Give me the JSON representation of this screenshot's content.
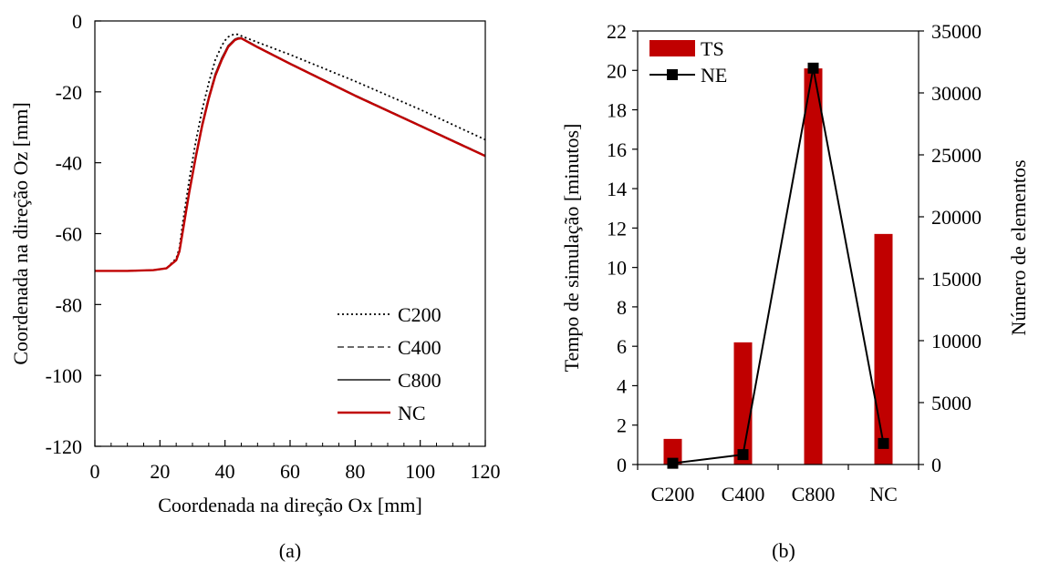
{
  "panels": {
    "a": {
      "label": "(a)"
    },
    "b": {
      "label": "(b)"
    }
  },
  "chart_data": [
    {
      "type": "line",
      "title": "",
      "xlabel": "Coordenada na direção Ox [mm]",
      "ylabel": "Coordenada na direção Oz [mm]",
      "xlim": [
        0,
        120
      ],
      "ylim": [
        -120,
        0
      ],
      "xticks": [
        0,
        20,
        40,
        60,
        80,
        100,
        120
      ],
      "yticks": [
        -120,
        -100,
        -80,
        -60,
        -40,
        -20,
        0
      ],
      "xtick_labels": [
        "0",
        "20",
        "40",
        "60",
        "80",
        "100",
        "120"
      ],
      "ytick_labels": [
        "-120",
        "-100",
        "-80",
        "-60",
        "-40",
        "-20",
        "0"
      ],
      "grid": false,
      "legend_position": "bottom-right",
      "series": [
        {
          "name": "C200",
          "style": "dotted",
          "color": "#000000",
          "x": [
            0,
            10,
            18,
            22,
            25,
            26,
            27,
            29,
            31,
            33,
            35,
            37,
            39,
            40,
            41,
            42,
            43,
            44,
            46,
            50,
            60,
            80,
            100,
            120
          ],
          "y": [
            -70.5,
            -70.5,
            -70.3,
            -69.8,
            -67.0,
            -64.0,
            -57.0,
            -45.0,
            -34.0,
            -25.0,
            -17.5,
            -11.0,
            -7.0,
            -5.5,
            -4.5,
            -4.0,
            -3.7,
            -3.8,
            -4.6,
            -6.0,
            -9.5,
            -17.0,
            -25.0,
            -33.5
          ]
        },
        {
          "name": "C400",
          "style": "dashed",
          "color": "#555555",
          "x": [
            0,
            10,
            18,
            22,
            25,
            26,
            27,
            29,
            31,
            33,
            35,
            37,
            39,
            41,
            43,
            44,
            45,
            47,
            50,
            60,
            80,
            100,
            120
          ],
          "y": [
            -70.5,
            -70.5,
            -70.3,
            -69.8,
            -67.5,
            -65.0,
            -59.0,
            -48.0,
            -38.0,
            -29.0,
            -21.5,
            -15.0,
            -10.5,
            -7.0,
            -5.2,
            -4.8,
            -4.8,
            -5.8,
            -7.3,
            -12.0,
            -21.0,
            -29.5,
            -38.0
          ]
        },
        {
          "name": "C800",
          "style": "solid",
          "color": "#3a3a3a",
          "x": [
            0,
            10,
            18,
            22,
            25,
            26,
            27,
            29,
            31,
            33,
            35,
            37,
            39,
            41,
            43,
            44,
            45,
            47,
            50,
            60,
            80,
            100,
            120
          ],
          "y": [
            -70.5,
            -70.5,
            -70.3,
            -69.8,
            -67.5,
            -65.0,
            -59.0,
            -48.0,
            -38.0,
            -29.0,
            -21.5,
            -15.0,
            -10.5,
            -7.0,
            -5.2,
            -4.8,
            -4.8,
            -5.8,
            -7.3,
            -12.0,
            -21.0,
            -29.5,
            -38.0
          ]
        },
        {
          "name": "NC",
          "style": "solid",
          "color": "#c00000",
          "x": [
            0,
            10,
            18,
            22,
            25,
            26,
            27,
            29,
            31,
            33,
            35,
            37,
            39,
            41,
            43,
            44,
            45,
            47,
            50,
            60,
            80,
            100,
            120
          ],
          "y": [
            -70.5,
            -70.5,
            -70.3,
            -69.8,
            -67.5,
            -65.0,
            -59.5,
            -48.5,
            -38.5,
            -29.5,
            -22.0,
            -15.5,
            -11.0,
            -7.3,
            -5.4,
            -5.0,
            -4.9,
            -5.9,
            -7.4,
            -12.1,
            -21.1,
            -29.6,
            -38.1
          ]
        }
      ]
    },
    {
      "type": "bar",
      "title": "",
      "categories": [
        "C200",
        "C400",
        "C800",
        "NC"
      ],
      "ylabel": "Tempo de simulação [minutos]",
      "y2label": "Número de elementos",
      "ylim": [
        0,
        22
      ],
      "y2lim": [
        0,
        35000
      ],
      "yticks": [
        0,
        2,
        4,
        6,
        8,
        10,
        12,
        14,
        16,
        18,
        20,
        22
      ],
      "y2ticks": [
        0,
        5000,
        10000,
        15000,
        20000,
        25000,
        30000,
        35000
      ],
      "ytick_labels": [
        "0",
        "2",
        "4",
        "6",
        "8",
        "10",
        "12",
        "14",
        "16",
        "18",
        "20",
        "22"
      ],
      "y2tick_labels": [
        "0",
        "5000",
        "10000",
        "15000",
        "20000",
        "25000",
        "30000",
        "35000"
      ],
      "grid": false,
      "legend_position": "top-left",
      "series": [
        {
          "name": "TS",
          "type": "bar",
          "axis": "left",
          "color": "#c00000",
          "values": [
            1.3,
            6.2,
            20.1,
            11.7
          ]
        },
        {
          "name": "NE",
          "type": "line",
          "axis": "right",
          "color": "#000000",
          "marker": "square",
          "values": [
            100,
            800,
            32000,
            1700
          ]
        }
      ]
    }
  ]
}
